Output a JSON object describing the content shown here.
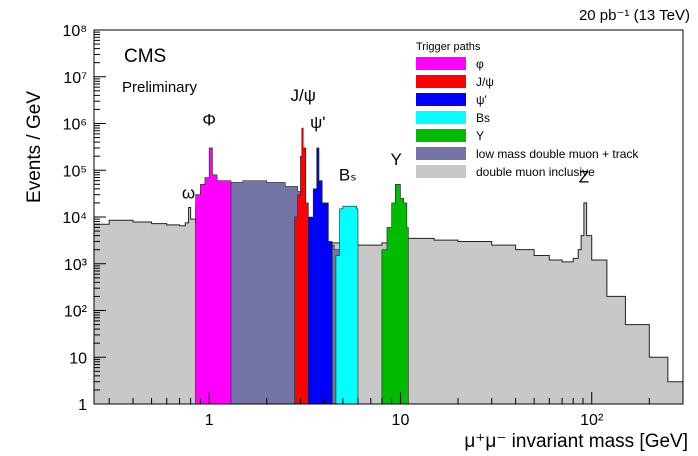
{
  "chart_data": {
    "type": "area",
    "title": "",
    "xlabel": "μ⁺μ⁻ invariant mass [GeV]",
    "ylabel": "Events / GeV",
    "lumi_label": "20 pb⁻¹ (13 TeV)",
    "experiment": "CMS",
    "status": "Preliminary",
    "xscale": "log",
    "yscale": "log",
    "xlim": [
      0.25,
      300
    ],
    "ylim": [
      1,
      100000000
    ],
    "grid": false,
    "legend_position": "top-right",
    "legend_title": "Trigger paths",
    "x_ticks": [
      {
        "value": 1,
        "label": "1"
      },
      {
        "value": 10,
        "label": "10"
      },
      {
        "value": 100,
        "label": "10²"
      }
    ],
    "y_ticks": [
      {
        "value": 1,
        "label": "1"
      },
      {
        "value": 10,
        "label": "10"
      },
      {
        "value": 100,
        "label": "10²"
      },
      {
        "value": 1000,
        "label": "10³"
      },
      {
        "value": 10000,
        "label": "10⁴"
      },
      {
        "value": 100000,
        "label": "10⁵"
      },
      {
        "value": 1000000,
        "label": "10⁶"
      },
      {
        "value": 10000000,
        "label": "10⁷"
      },
      {
        "value": 100000000,
        "label": "10⁸"
      }
    ],
    "series": [
      {
        "name": "double muon inclusive",
        "color": "#c8c8c8",
        "points": [
          [
            0.25,
            7000
          ],
          [
            0.3,
            8500
          ],
          [
            0.4,
            7800
          ],
          [
            0.5,
            7200
          ],
          [
            0.6,
            6800
          ],
          [
            0.7,
            6500
          ],
          [
            0.75,
            7500
          ],
          [
            0.78,
            16000
          ],
          [
            0.8,
            9000
          ],
          [
            0.85,
            7500
          ],
          [
            0.9,
            7000
          ],
          [
            1.0,
            7000
          ],
          [
            1.2,
            7000
          ],
          [
            1.5,
            6500
          ],
          [
            2.0,
            5500
          ],
          [
            2.5,
            4500
          ],
          [
            3.0,
            4000
          ],
          [
            3.1,
            14000
          ],
          [
            3.2,
            3500
          ],
          [
            3.5,
            3000
          ],
          [
            3.7,
            4000
          ],
          [
            4.0,
            2800
          ],
          [
            5.0,
            2600
          ],
          [
            6.0,
            2500
          ],
          [
            7.0,
            2500
          ],
          [
            8.0,
            2800
          ],
          [
            9.0,
            3500
          ],
          [
            9.5,
            4000
          ],
          [
            10.0,
            3500
          ],
          [
            11.0,
            3500
          ],
          [
            15.0,
            3200
          ],
          [
            20.0,
            3000
          ],
          [
            30.0,
            2500
          ],
          [
            40.0,
            2000
          ],
          [
            50.0,
            1500
          ],
          [
            60.0,
            1200
          ],
          [
            70.0,
            1100
          ],
          [
            80.0,
            1300
          ],
          [
            85.0,
            2000
          ],
          [
            88.0,
            4000
          ],
          [
            91.0,
            20000
          ],
          [
            94.0,
            4000
          ],
          [
            100.0,
            1200
          ],
          [
            120.0,
            200
          ],
          [
            150.0,
            50
          ],
          [
            200.0,
            10
          ],
          [
            250.0,
            3
          ],
          [
            300.0,
            1
          ]
        ]
      },
      {
        "name": "low mass double muon + track",
        "color": "#7474a8",
        "points": [
          [
            0.85,
            18000
          ],
          [
            0.9,
            35000
          ],
          [
            1.0,
            45000
          ],
          [
            1.2,
            55000
          ],
          [
            1.5,
            60000
          ],
          [
            2.0,
            55000
          ],
          [
            2.5,
            45000
          ],
          [
            2.9,
            35000
          ],
          [
            3.0,
            10000
          ],
          [
            3.2,
            8000
          ],
          [
            3.5,
            4000
          ],
          [
            4.0,
            2500
          ],
          [
            4.5,
            2000
          ],
          [
            5.0,
            1800
          ]
        ]
      },
      {
        "name": "φ",
        "color": "#ff00ff",
        "points": [
          [
            0.85,
            30000
          ],
          [
            0.9,
            50000
          ],
          [
            0.95,
            70000
          ],
          [
            1.0,
            300000
          ],
          [
            1.04,
            80000
          ],
          [
            1.1,
            60000
          ],
          [
            1.2,
            60000
          ],
          [
            1.3,
            50000
          ]
        ]
      },
      {
        "name": "J/ψ",
        "color": "#ff0000",
        "points": [
          [
            2.8,
            10000
          ],
          [
            2.9,
            30000
          ],
          [
            3.0,
            200000
          ],
          [
            3.05,
            800000
          ],
          [
            3.1,
            300000
          ],
          [
            3.2,
            20000
          ],
          [
            3.3,
            5000
          ]
        ]
      },
      {
        "name": "ψ'",
        "color": "#0000ff",
        "points": [
          [
            3.3,
            10000
          ],
          [
            3.5,
            40000
          ],
          [
            3.65,
            300000
          ],
          [
            3.75,
            60000
          ],
          [
            3.9,
            20000
          ],
          [
            4.2,
            3000
          ],
          [
            4.4,
            1500
          ]
        ]
      },
      {
        "name": "Bs",
        "color": "#00ffff",
        "points": [
          [
            4.6,
            1500
          ],
          [
            4.8,
            15000
          ],
          [
            5.0,
            17000
          ],
          [
            5.5,
            17000
          ],
          [
            5.9,
            15000
          ],
          [
            6.0,
            1500
          ]
        ]
      },
      {
        "name": "Υ",
        "color": "#00bb00",
        "points": [
          [
            8.0,
            2000
          ],
          [
            8.5,
            6000
          ],
          [
            9.0,
            20000
          ],
          [
            9.4,
            50000
          ],
          [
            10.0,
            25000
          ],
          [
            10.4,
            20000
          ],
          [
            10.8,
            6000
          ],
          [
            11.0,
            2500
          ]
        ]
      }
    ],
    "annotations": [
      {
        "text": "ω",
        "x": 0.78,
        "y": 25000
      },
      {
        "text": "Φ",
        "x": 1.0,
        "y": 900000
      },
      {
        "text": "J/ψ",
        "x": 3.1,
        "y": 3000000
      },
      {
        "text": "ψ'",
        "x": 3.7,
        "y": 800000
      },
      {
        "text": "Bₛ",
        "x": 5.3,
        "y": 60000
      },
      {
        "text": "Υ",
        "x": 9.5,
        "y": 130000
      },
      {
        "text": "Z",
        "x": 91,
        "y": 55000
      }
    ]
  }
}
